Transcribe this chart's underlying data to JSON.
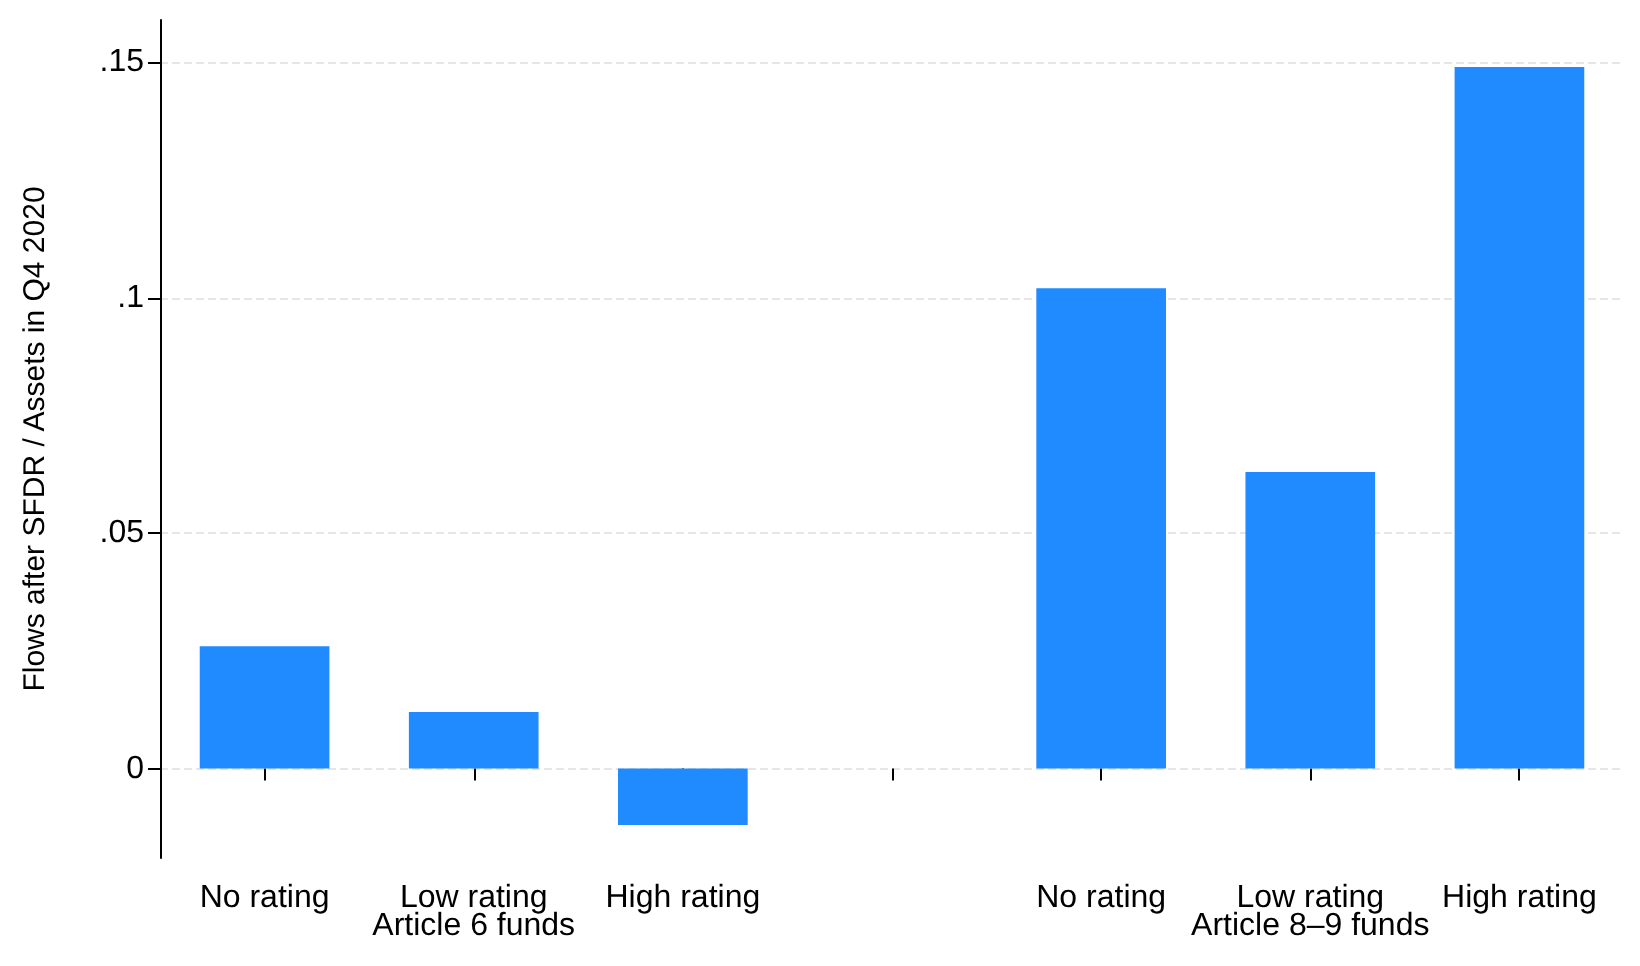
{
  "chart_data": {
    "type": "bar",
    "ylabel": "Flows after SFDR / Assets in Q4 2020",
    "categories": [
      "No rating",
      "Low rating",
      "High rating",
      null,
      "No rating",
      "Low rating",
      "High rating"
    ],
    "values": [
      0.026,
      0.012,
      -0.012,
      null,
      0.102,
      0.063,
      0.149
    ],
    "color": "#1f8bff",
    "ylim": [
      -0.019,
      0.159
    ],
    "yticks": [
      {
        "value": 0,
        "label": "0"
      },
      {
        "value": 0.05,
        "label": ".05"
      },
      {
        "value": 0.1,
        "label": ".1"
      },
      {
        "value": 0.15,
        "label": ".15"
      }
    ],
    "grid": "y",
    "annotations": [
      "Article 6 funds",
      "Article 8–9 funds"
    ]
  }
}
